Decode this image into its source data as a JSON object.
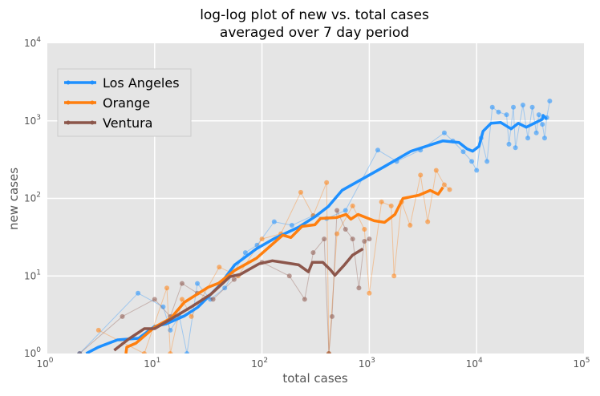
{
  "chart_data": {
    "type": "line",
    "title": "log-log plot of new vs. total cases",
    "subtitle": "averaged over 7 day period",
    "xlabel": "total cases",
    "ylabel": "new cases",
    "xscale": "log",
    "yscale": "log",
    "xlim": [
      1,
      100000
    ],
    "ylim": [
      1,
      10000
    ],
    "x_ticks": [
      {
        "base": "10",
        "exp": "0",
        "value": 1
      },
      {
        "base": "10",
        "exp": "1",
        "value": 10
      },
      {
        "base": "10",
        "exp": "2",
        "value": 100
      },
      {
        "base": "10",
        "exp": "3",
        "value": 1000
      },
      {
        "base": "10",
        "exp": "4",
        "value": 10000
      },
      {
        "base": "10",
        "exp": "5",
        "value": 100000
      }
    ],
    "y_ticks": [
      {
        "base": "10",
        "exp": "0",
        "value": 1
      },
      {
        "base": "10",
        "exp": "1",
        "value": 10
      },
      {
        "base": "10",
        "exp": "2",
        "value": 100
      },
      {
        "base": "10",
        "exp": "3",
        "value": 1000
      },
      {
        "base": "10",
        "exp": "4",
        "value": 10000
      }
    ],
    "grid": true,
    "legend_placement": "upper-left",
    "background": "#E5E5E5",
    "series": [
      {
        "name": "Los Angeles",
        "color": "#1E90FF",
        "averaged": [
          [
            2.3,
            1.0
          ],
          [
            3.0,
            1.21
          ],
          [
            4.5,
            1.5
          ],
          [
            7.1,
            1.57
          ],
          [
            10,
            2.24
          ],
          [
            12.7,
            2.4
          ],
          [
            18.9,
            3.05
          ],
          [
            25.3,
            3.96
          ],
          [
            39.5,
            7.35
          ],
          [
            55.7,
            13.9
          ],
          [
            88.7,
            22.4
          ],
          [
            131,
            30.5
          ],
          [
            220,
            42.6
          ],
          [
            311,
            57.9
          ],
          [
            416,
            78.9
          ],
          [
            557,
            127
          ],
          [
            1387,
            258
          ],
          [
            2443,
            406
          ],
          [
            4860,
            552
          ],
          [
            6850,
            526
          ],
          [
            8130,
            436
          ],
          [
            9180,
            406
          ],
          [
            10520,
            470
          ],
          [
            11480,
            735
          ],
          [
            13630,
            931
          ],
          [
            16750,
            953
          ],
          [
            20950,
            789
          ],
          [
            24430,
            931
          ],
          [
            29000,
            828
          ],
          [
            40900,
            1048
          ],
          [
            41600,
            1175
          ],
          [
            45000,
            1050
          ]
        ],
        "raw": [
          [
            2,
            1
          ],
          [
            7,
            6
          ],
          [
            12,
            4
          ],
          [
            14,
            2
          ],
          [
            17,
            3
          ],
          [
            20,
            1
          ],
          [
            25,
            8
          ],
          [
            33,
            5
          ],
          [
            45,
            7
          ],
          [
            70,
            20
          ],
          [
            90,
            25
          ],
          [
            130,
            50
          ],
          [
            190,
            45
          ],
          [
            300,
            60
          ],
          [
            400,
            55
          ],
          [
            600,
            70
          ],
          [
            1200,
            420
          ],
          [
            1800,
            300
          ],
          [
            3000,
            420
          ],
          [
            5000,
            700
          ],
          [
            6000,
            550
          ],
          [
            7500,
            400
          ],
          [
            9000,
            300
          ],
          [
            10000,
            230
          ],
          [
            11000,
            600
          ],
          [
            12500,
            300
          ],
          [
            14000,
            1500
          ],
          [
            16000,
            1300
          ],
          [
            19000,
            1200
          ],
          [
            20000,
            500
          ],
          [
            22000,
            1500
          ],
          [
            23000,
            450
          ],
          [
            27000,
            1600
          ],
          [
            30000,
            600
          ],
          [
            33000,
            1500
          ],
          [
            36000,
            700
          ],
          [
            38000,
            1200
          ],
          [
            41000,
            900
          ],
          [
            43000,
            600
          ],
          [
            45000,
            1100
          ],
          [
            48000,
            1800
          ]
        ]
      },
      {
        "name": "Orange",
        "color": "#FF7F0E",
        "averaged": [
          [
            5.4,
            1.0
          ],
          [
            5.5,
            1.21
          ],
          [
            6.7,
            1.36
          ],
          [
            10,
            2.19
          ],
          [
            14.1,
            2.84
          ],
          [
            18.9,
            4.57
          ],
          [
            31.6,
            7.17
          ],
          [
            39.5,
            8.08
          ],
          [
            55.7,
            11.8
          ],
          [
            88.7,
            16.9
          ],
          [
            156,
            33.6
          ],
          [
            186,
            31.3
          ],
          [
            236,
            43.6
          ],
          [
            311,
            45.7
          ],
          [
            351,
            55.2
          ],
          [
            494,
            56.6
          ],
          [
            608,
            62.2
          ],
          [
            673,
            54
          ],
          [
            787,
            62.2
          ],
          [
            1110,
            51.5
          ],
          [
            1387,
            49.1
          ],
          [
            1733,
            62.2
          ],
          [
            2058,
            100
          ],
          [
            2900,
            110
          ],
          [
            3690,
            127
          ],
          [
            4380,
            113
          ],
          [
            4860,
            139
          ]
        ],
        "raw": [
          [
            3,
            2
          ],
          [
            8,
            1
          ],
          [
            13,
            7
          ],
          [
            14,
            1
          ],
          [
            18,
            5
          ],
          [
            22,
            3
          ],
          [
            40,
            13
          ],
          [
            60,
            10
          ],
          [
            100,
            30
          ],
          [
            150,
            35
          ],
          [
            230,
            120
          ],
          [
            300,
            60
          ],
          [
            400,
            160
          ],
          [
            420,
            1
          ],
          [
            500,
            35
          ],
          [
            700,
            80
          ],
          [
            900,
            40
          ],
          [
            1000,
            6
          ],
          [
            1300,
            90
          ],
          [
            1600,
            80
          ],
          [
            1700,
            10
          ],
          [
            2000,
            90
          ],
          [
            2400,
            45
          ],
          [
            3000,
            200
          ],
          [
            3500,
            50
          ],
          [
            4200,
            230
          ],
          [
            5000,
            150
          ],
          [
            5600,
            130
          ]
        ]
      },
      {
        "name": "Ventura",
        "color": "#8C564B",
        "averaged": [
          [
            4.2,
            1.1
          ],
          [
            5.7,
            1.53
          ],
          [
            8.0,
            2.09
          ],
          [
            10,
            2.09
          ],
          [
            13.4,
            2.65
          ],
          [
            22.4,
            4.06
          ],
          [
            33.3,
            5.79
          ],
          [
            50.2,
            9.77
          ],
          [
            63,
            10.5
          ],
          [
            93.4,
            14.3
          ],
          [
            125,
            15.7
          ],
          [
            156,
            15
          ],
          [
            220,
            13.9
          ],
          [
            271,
            11.3
          ],
          [
            295,
            15
          ],
          [
            369,
            15
          ],
          [
            439,
            11.8
          ],
          [
            478,
            10.2
          ],
          [
            587,
            13.9
          ],
          [
            697,
            18.5
          ],
          [
            872,
            22.4
          ]
        ],
        "raw": [
          [
            2,
            1
          ],
          [
            5,
            3
          ],
          [
            10,
            5
          ],
          [
            14,
            3
          ],
          [
            18,
            8
          ],
          [
            25,
            6
          ],
          [
            35,
            5
          ],
          [
            55,
            9
          ],
          [
            100,
            15
          ],
          [
            180,
            10
          ],
          [
            250,
            5
          ],
          [
            300,
            20
          ],
          [
            380,
            30
          ],
          [
            420,
            1
          ],
          [
            450,
            3
          ],
          [
            500,
            70
          ],
          [
            600,
            40
          ],
          [
            700,
            30
          ],
          [
            800,
            7
          ],
          [
            900,
            28
          ],
          [
            1000,
            30
          ]
        ]
      }
    ]
  }
}
